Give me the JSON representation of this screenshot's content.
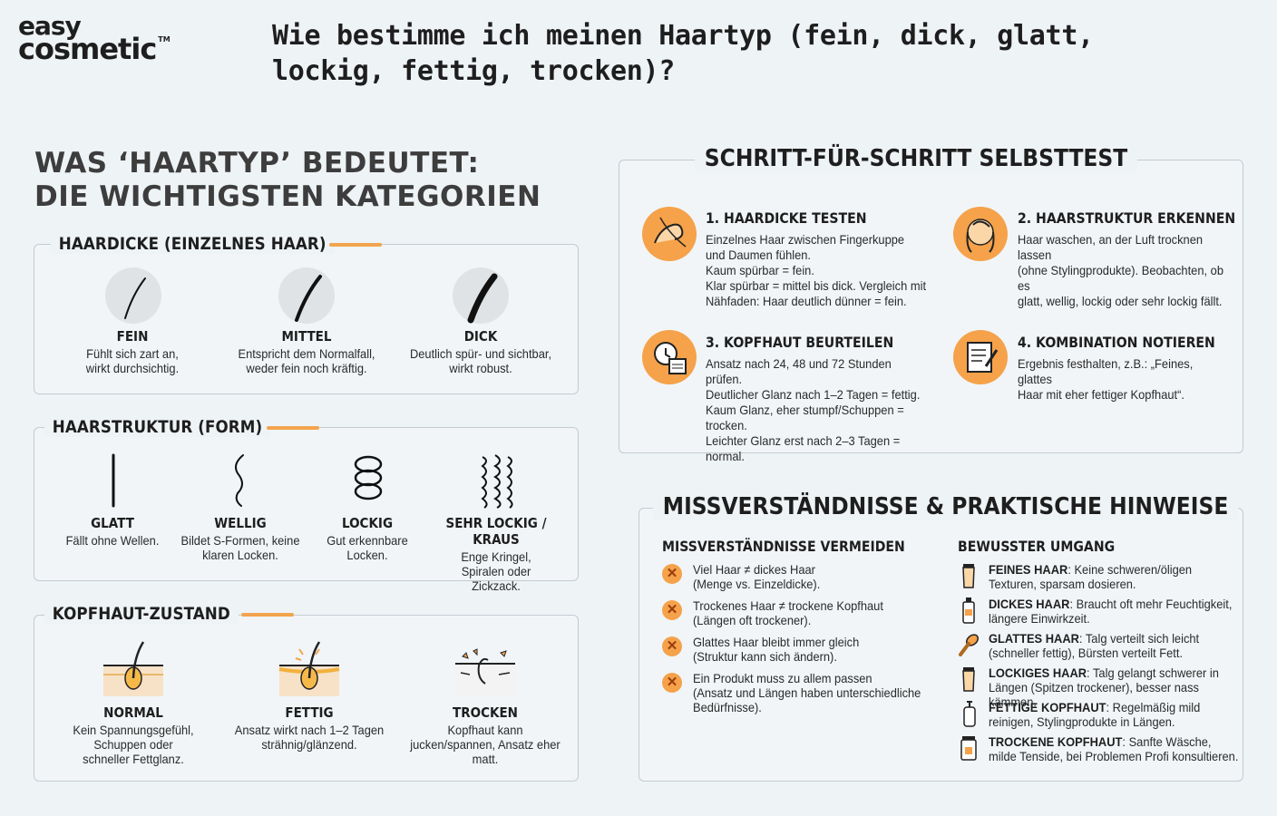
{
  "brand": {
    "line1": "easy",
    "line2": "cosmetic",
    "tm": "TM"
  },
  "page_title": "Wie bestimme ich meinen Haartyp (fein, dick, glatt, lockig, fettig, trocken)?",
  "left": {
    "heading_line1": "WAS ‘HAARTYP’ BEDEUTET:",
    "heading_line2": "DIE WICHTIGSTEN KATEGORIEN",
    "haardicke": {
      "title": "HAARDICKE (EINZELNES HAAR)",
      "items": [
        {
          "label": "FEIN",
          "desc": "Fühlt sich zart an, wirkt durchsichtig."
        },
        {
          "label": "MITTEL",
          "desc": "Entspricht dem Normalfall, weder fein noch kräftig."
        },
        {
          "label": "DICK",
          "desc": "Deutlich spür- und sichtbar, wirkt robust."
        }
      ]
    },
    "haarstruktur": {
      "title": "HAARSTRUKTUR (FORM)",
      "items": [
        {
          "label": "GLATT",
          "desc": "Fällt ohne Wellen."
        },
        {
          "label": "WELLIG",
          "desc": "Bildet S-Formen, keine klaren Locken."
        },
        {
          "label": "LOCKIG",
          "desc": "Gut erkennbare Locken."
        },
        {
          "label": "SEHR LOCKIG / KRAUS",
          "desc": "Enge Kringel, Spiralen oder Zickzack."
        }
      ]
    },
    "kopfhaut": {
      "title": "KOPFHAUT-ZUSTAND",
      "items": [
        {
          "label": "NORMAL",
          "desc": "Kein Spannungsgefühl, Schuppen oder schneller Fettglanz."
        },
        {
          "label": "FETTIG",
          "desc": "Ansatz wirkt nach 1–2 Tagen strähnig/glänzend."
        },
        {
          "label": "TROCKEN",
          "desc": "Kopfhaut kann jucken/spannen, Ansatz eher matt."
        }
      ]
    }
  },
  "selbsttest": {
    "title": "SCHRITT-FÜR-SCHRITT SELBSTTEST",
    "steps": [
      {
        "title": "1. HAARDICKE TESTEN",
        "text": "Einzelnes Haar zwischen Fingerkuppe\nund Daumen fühlen.\nKaum spürbar = fein.\nKlar spürbar = mittel bis dick. Vergleich mit\nNähfaden: Haar deutlich dünner = fein."
      },
      {
        "title": "2. HAARSTRUKTUR ERKENNEN",
        "text": "Haar waschen, an der Luft trocknen lassen\n(ohne Stylingprodukte). Beobachten, ob es\nglatt, wellig, lockig oder sehr lockig fällt."
      },
      {
        "title": "3. KOPFHAUT BEURTEILEN",
        "text": "Ansatz nach 24, 48 und 72 Stunden prüfen.\nDeutlicher Glanz nach 1–2 Tagen = fettig.\nKaum Glanz, eher stumpf/Schuppen = trocken.\nLeichter Glanz erst nach 2–3 Tagen = normal."
      },
      {
        "title": "4. KOMBINATION NOTIEREN",
        "text": "Ergebnis festhalten, z.B.: „Feines, glattes\nHaar mit eher fettiger Kopfhaut“."
      }
    ]
  },
  "hinweise": {
    "title": "MISSVERSTÄNDNISSE & PRAKTISCHE HINWEISE",
    "missverstaendnisse": {
      "title": "MISSVERSTÄNDNISSE VERMEIDEN",
      "items": [
        "Viel Haar ≠ dickes Haar\n(Menge vs. Einzeldicke).",
        "Trockenes Haar ≠ trockene Kopfhaut\n(Längen oft trockener).",
        "Glattes Haar bleibt immer gleich\n(Struktur kann sich ändern).",
        "Ein Produkt muss zu allem passen\n(Ansatz und Längen haben unterschiedliche\nBedürfnisse)."
      ]
    },
    "umgang": {
      "title": "BEWUSSTER UMGANG",
      "items": [
        {
          "bold": "FEINES HAAR",
          "text": ": Keine schweren/öligen Texturen, sparsam dosieren."
        },
        {
          "bold": "DICKES HAAR",
          "text": ": Braucht oft mehr Feuchtigkeit, längere Einwirkzeit."
        },
        {
          "bold": "GLATTES HAAR",
          "text": ": Talg verteilt sich leicht (schneller fettig), Bürsten verteilt Fett."
        },
        {
          "bold": "LOCKIGES HAAR",
          "text": ": Talg gelangt schwerer in Längen (Spitzen trockener), besser nass kämmen."
        },
        {
          "bold": "FETTIGE KOPFHAUT",
          "text": ": Regelmäßig mild reinigen, Stylingprodukte in Längen."
        },
        {
          "bold": "TROCKENE KOPFHAUT",
          "text": ": Sanfte Wäsche, milde Tenside, bei Problemen Profi konsultieren."
        }
      ]
    }
  },
  "colors": {
    "accent": "#f5a24a",
    "background": "#eef3f6",
    "text": "#1e1e1e",
    "border": "#c4cbd0"
  }
}
